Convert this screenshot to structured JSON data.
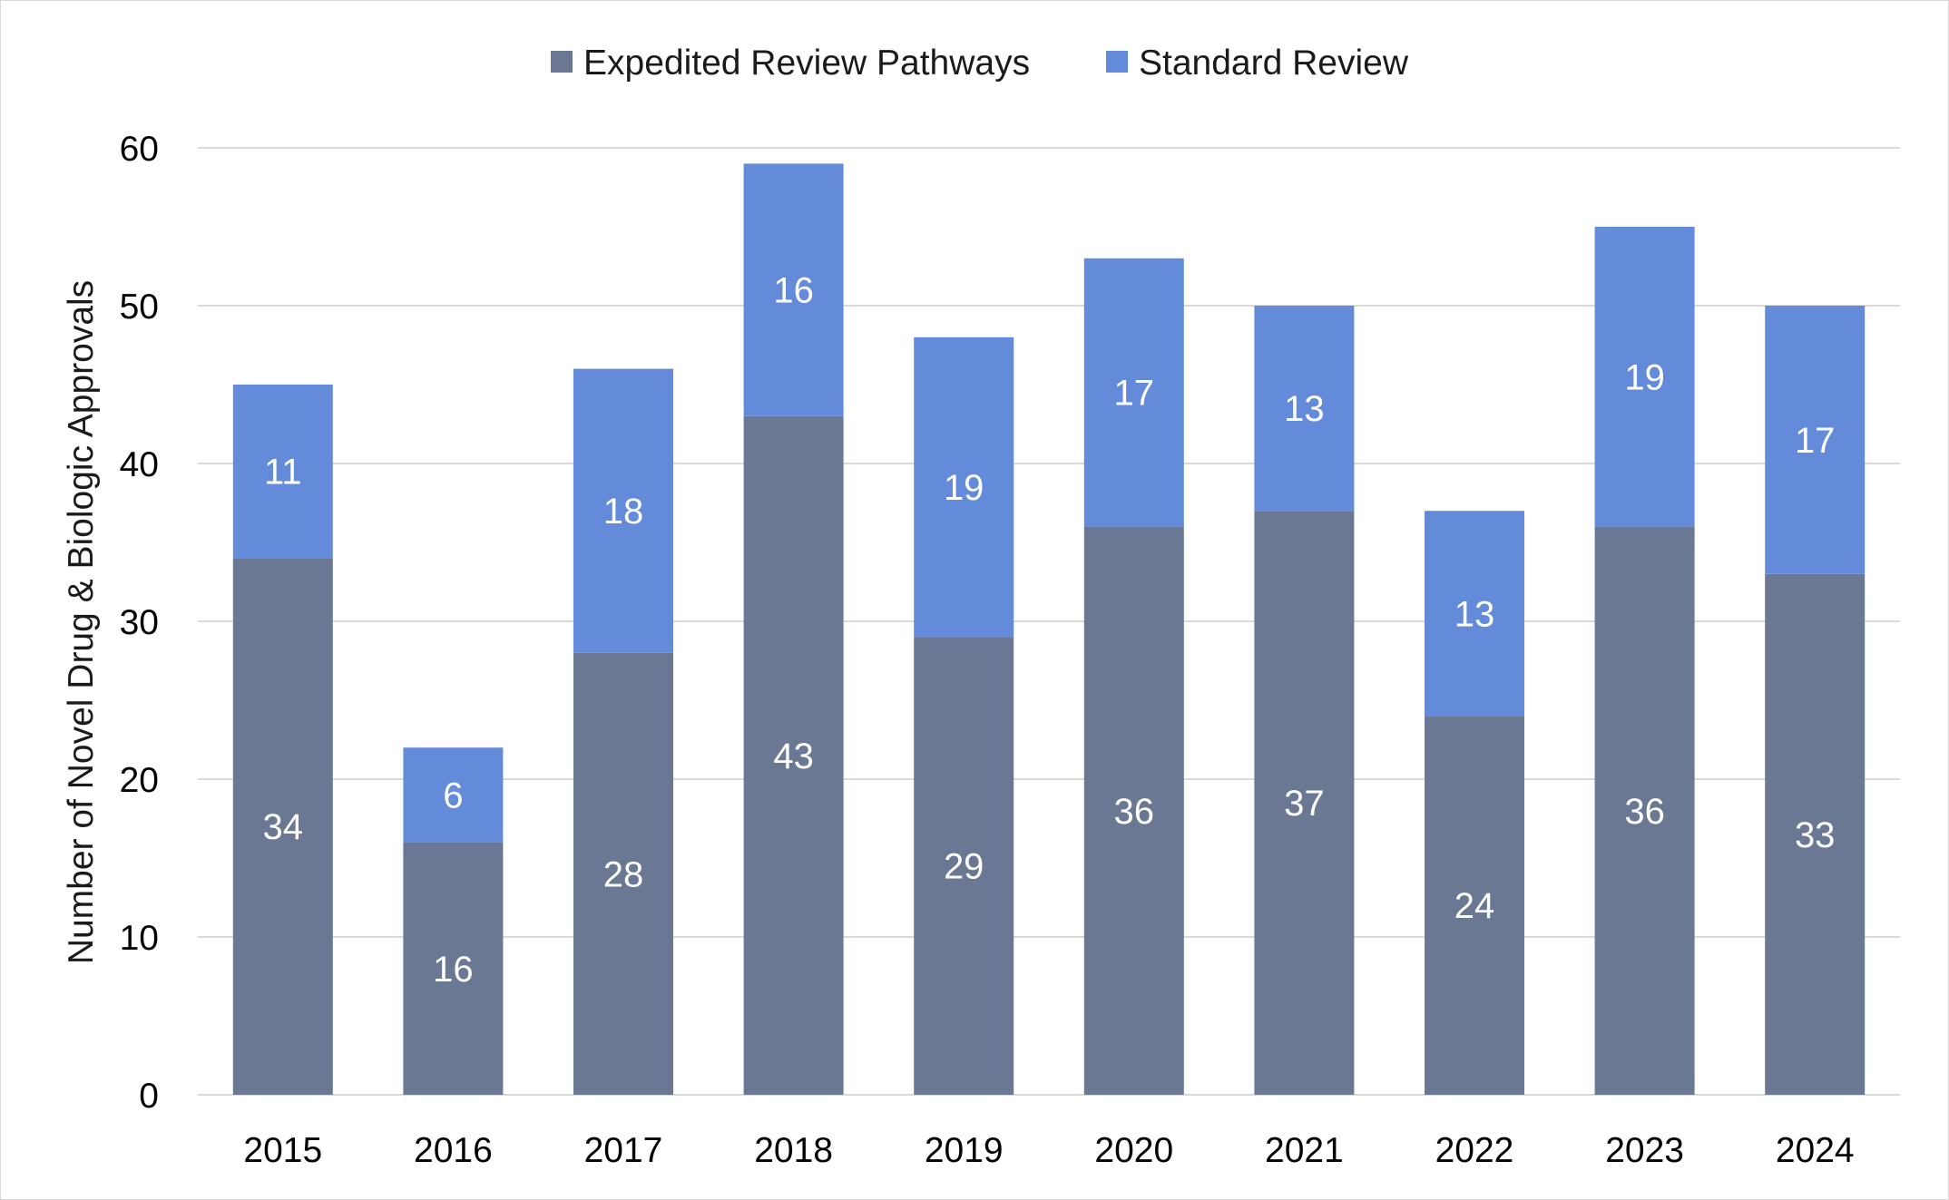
{
  "chart_data": {
    "type": "bar",
    "stacked": true,
    "title": "",
    "xlabel": "",
    "ylabel": "Number of Novel Drug & Biologic Approvals",
    "ylim": [
      0,
      60
    ],
    "yticks": [
      0,
      10,
      20,
      30,
      40,
      50,
      60
    ],
    "grid": true,
    "legend_position": "top-center",
    "categories": [
      "2015",
      "2016",
      "2017",
      "2018",
      "2019",
      "2020",
      "2021",
      "2022",
      "2023",
      "2024"
    ],
    "series": [
      {
        "name": "Expedited Review Pathways",
        "color": "#6a7893",
        "values": [
          34,
          16,
          28,
          43,
          29,
          36,
          37,
          24,
          36,
          33
        ]
      },
      {
        "name": "Standard Review",
        "color": "#648bd9",
        "values": [
          11,
          6,
          18,
          16,
          19,
          17,
          13,
          13,
          19,
          17
        ]
      }
    ]
  }
}
